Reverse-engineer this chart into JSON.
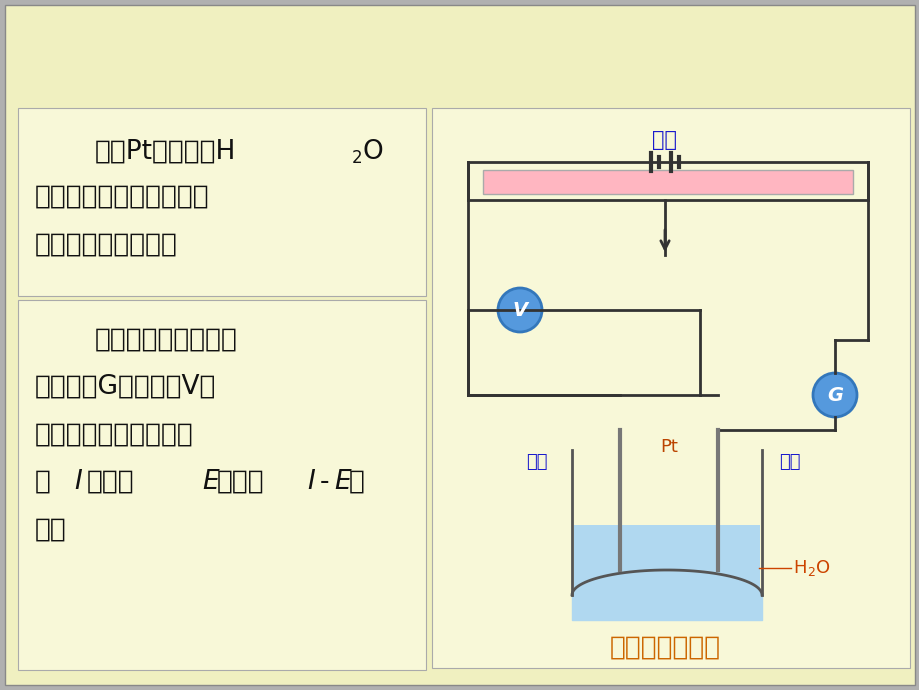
{
  "bg_color": "#f0f0c8",
  "circuit_color": "#333333",
  "resistor_color": "#ffb6c1",
  "water_color": "#b0d8f0",
  "voltmeter_color": "#5599dd",
  "ammeter_color": "#5599dd",
  "blue_text": "#1a1acc",
  "red_brown_text": "#cc4400",
  "orange_text": "#cc6600",
  "black_text": "#111111",
  "beaker_color": "#555555",
  "label_dianquan": "电源",
  "label_yangji": "阳极",
  "label_yinji": "阴极",
  "label_Pt": "Pt",
  "label_caption": "分解电压的测定",
  "text1_l1a": "使用Pt电极电解H",
  "text1_l1b": "O",
  "text1_l2": "，加入中性盐用来导电，",
  "text1_l3": "实验装置如图所示。",
  "text2_l1": "逐渐增加外加电压，",
  "text2_l2": "由安培计G和伏特计V分",
  "text2_l3": "别测定线路中的电流强",
  "text2_l4a": "度",
  "text2_l4b": "和电压",
  "text2_l4c": "，画出",
  "text2_l4d": "曲",
  "text2_l5": "线。",
  "label_H2O_text": "H",
  "label_H2O_sub": "O"
}
